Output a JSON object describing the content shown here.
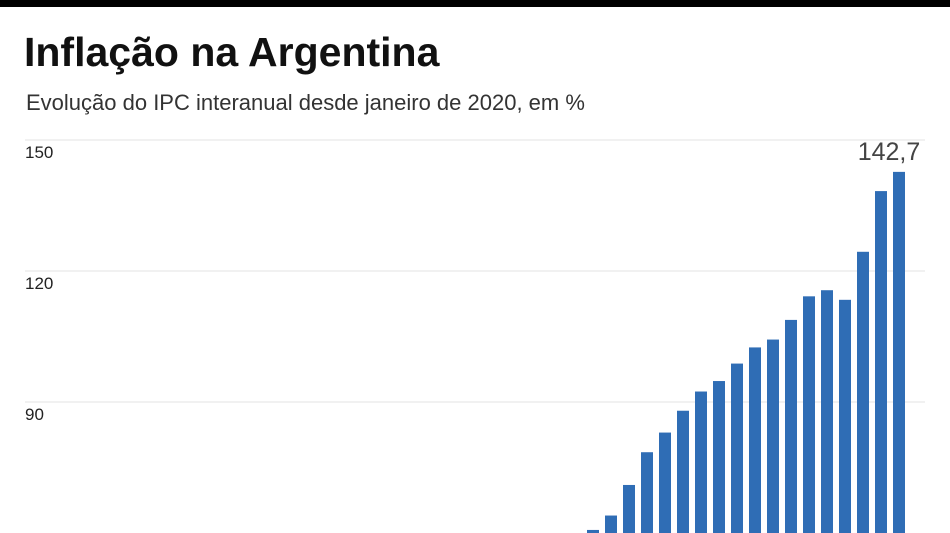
{
  "chart_data": {
    "type": "bar",
    "title": "Inflação na Argentina",
    "subtitle": "Evolução do IPC interanual desde janeiro de 2020, em %",
    "categories": [
      null,
      null,
      null,
      null,
      null,
      null,
      null,
      null,
      null,
      null,
      null,
      null,
      null,
      null,
      null,
      null,
      null,
      null
    ],
    "values": [
      60.7,
      64.0,
      71.0,
      78.5,
      83.0,
      88.0,
      92.4,
      94.8,
      98.8,
      102.5,
      104.3,
      108.8,
      114.2,
      115.6,
      113.4,
      124.4,
      138.3,
      142.7
    ],
    "value_labels": [
      null,
      null,
      null,
      null,
      null,
      null,
      null,
      null,
      null,
      null,
      null,
      null,
      null,
      null,
      null,
      null,
      null,
      "142,7"
    ],
    "color": "#2f6db5",
    "ylim": [
      60,
      150
    ],
    "yticks": [
      90,
      120,
      150
    ],
    "grid": true
  }
}
